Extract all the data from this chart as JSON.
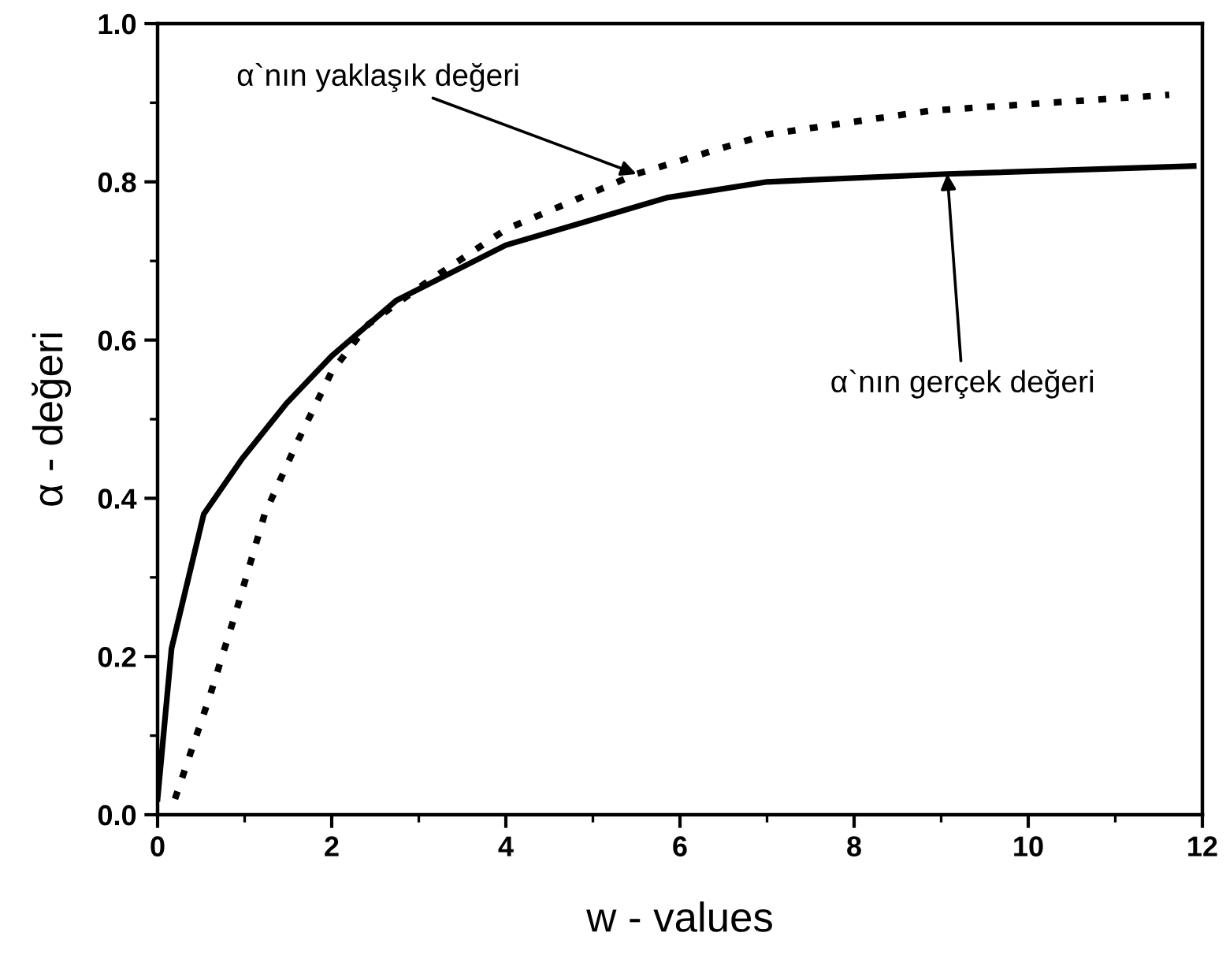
{
  "chart_data": {
    "type": "line",
    "xlabel": "w - values",
    "ylabel": "α - değeri",
    "xlim": [
      0,
      12
    ],
    "xticks": [
      0,
      2,
      4,
      6,
      8,
      10,
      12
    ],
    "ylim": [
      0.0,
      1.0
    ],
    "yticks": [
      {
        "value": 0.0,
        "label": "0.0"
      },
      0.2,
      0.4,
      0.6,
      0.8,
      {
        "value": 1.0,
        "label": "1.0"
      }
    ],
    "grid": false,
    "legend": false,
    "marker": "none",
    "series": [
      {
        "color": "#000000",
        "line_style": "solid",
        "x": [
          0,
          0.16,
          0.53,
          0.97,
          1.48,
          2.0,
          2.74,
          4.0,
          5.85,
          7.0,
          9.07,
          11.9
        ],
        "values": [
          0.02,
          0.21,
          0.38,
          0.45,
          0.52,
          0.58,
          0.65,
          0.72,
          0.78,
          0.8,
          0.81,
          0.82
        ]
      },
      {
        "color": "#000000",
        "line_style": "dotted",
        "x": [
          0.2,
          0.6,
          0.91,
          1.23,
          1.6,
          2.0,
          2.42,
          3.05,
          4.0,
          5.5,
          7.0,
          8.88,
          11.62
        ],
        "values": [
          0.02,
          0.15,
          0.26,
          0.38,
          0.47,
          0.56,
          0.62,
          0.67,
          0.74,
          0.81,
          0.86,
          0.89,
          0.91
        ]
      }
    ],
    "annotations": [
      {
        "text": "α`nın yaklaşık değeri",
        "x": 5.5,
        "y": 0.81
      },
      {
        "text": "α`nın gerçek değeri",
        "x": 9.07,
        "y": 0.81
      }
    ]
  }
}
